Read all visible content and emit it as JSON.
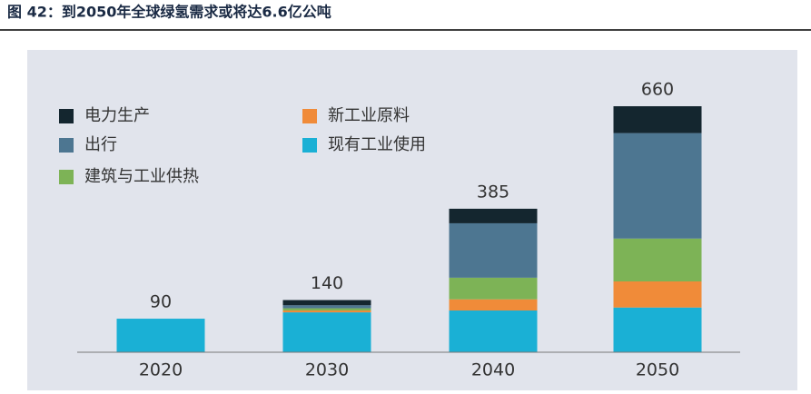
{
  "chart_data": {
    "type": "stacked_bar",
    "title": "图 42：到2050年全球绿氢需求或将达6.6亿公吨",
    "categories": [
      "2020",
      "2030",
      "2040",
      "2050"
    ],
    "series": [
      {
        "name": "现有工业使用",
        "color": "#1ab0d5",
        "values": [
          90,
          107,
          112,
          120
        ]
      },
      {
        "name": "新工业原料",
        "color": "#f08b39",
        "values": [
          0,
          5,
          30,
          70
        ]
      },
      {
        "name": "建筑与工业供热",
        "color": "#7db356",
        "values": [
          0,
          6,
          58,
          115
        ]
      },
      {
        "name": "出行",
        "color": "#4d7691",
        "values": [
          0,
          8,
          146,
          283
        ]
      },
      {
        "name": "电力生产",
        "color": "#14262f",
        "values": [
          0,
          14,
          39,
          72
        ]
      }
    ],
    "totals": [
      90,
      140,
      385,
      660
    ],
    "ylim": [
      0,
      700
    ]
  }
}
